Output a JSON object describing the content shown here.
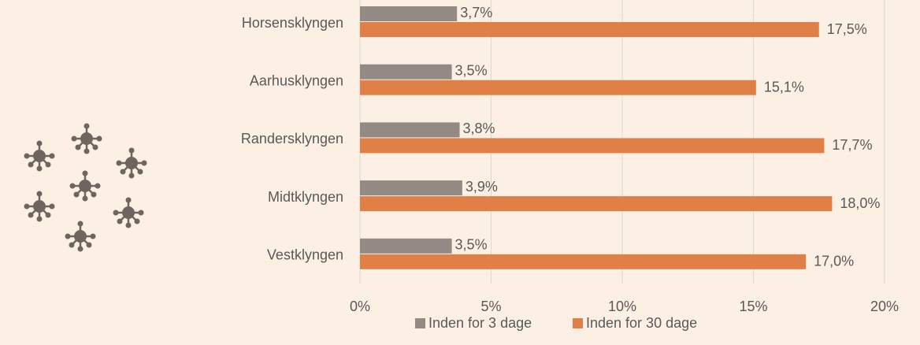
{
  "chart_data": {
    "type": "bar",
    "orientation": "horizontal",
    "categories": [
      "Horsensklyngen",
      "Aarhusklyngen",
      "Randersklyngen",
      "Midtklyngen",
      "Vestklyngen"
    ],
    "series": [
      {
        "name": "Inden for 3 dage",
        "color": "#948a85",
        "values": [
          3.7,
          3.5,
          3.8,
          3.9,
          3.5
        ],
        "value_labels": [
          "3,7%",
          "3,5%",
          "3,8%",
          "3,9%",
          "3,5%"
        ]
      },
      {
        "name": "Inden for 30 dage",
        "color": "#e07f46",
        "values": [
          17.5,
          15.1,
          17.7,
          18.0,
          17.0
        ],
        "value_labels": [
          "17,5%",
          "15,1%",
          "17,7%",
          "18,0%",
          "17,0%"
        ]
      }
    ],
    "xlim": [
      0,
      20
    ],
    "xticks": [
      {
        "value": 0,
        "label": "0%"
      },
      {
        "value": 5,
        "label": "5%"
      },
      {
        "value": 10,
        "label": "10%"
      },
      {
        "value": 15,
        "label": "15%"
      },
      {
        "value": 20,
        "label": "20%"
      }
    ],
    "grid": true,
    "legend": "bottom"
  }
}
